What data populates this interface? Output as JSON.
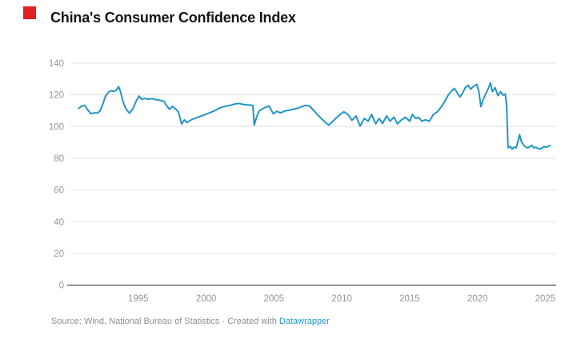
{
  "header": {
    "title": "China's Consumer Confidence Index"
  },
  "footer": {
    "source_text": "Source: Wind, National Bureau of Statistics · Created with ",
    "link_text": "Datawrapper"
  },
  "colors": {
    "line": "#2096c7",
    "link": "#1e97d5",
    "grid": "#e0e0e0",
    "baseline": "#1a1a1a",
    "axis_labels": "#969696",
    "title_text": "#151515",
    "source_text": "#8e8e8e",
    "logo_red": "#e0211f"
  },
  "chart_data": {
    "type": "line",
    "title": "China's Consumer Confidence Index",
    "xlabel": "",
    "ylabel": "",
    "xlim": [
      1990,
      2025.8
    ],
    "ylim": [
      0,
      140
    ],
    "x_ticks": [
      1995,
      2000,
      2005,
      2010,
      2015,
      2020,
      2025
    ],
    "y_ticks": [
      0,
      20,
      40,
      60,
      80,
      100,
      120,
      140
    ],
    "grid": "horizontal",
    "legend": "none",
    "series": [
      {
        "name": "Consumer Confidence Index",
        "points": [
          [
            1990.6,
            111.5
          ],
          [
            1990.8,
            112.8
          ],
          [
            1991.05,
            113.4
          ],
          [
            1991.3,
            110.2
          ],
          [
            1991.5,
            108.2
          ],
          [
            1991.75,
            108.6
          ],
          [
            1992.0,
            108.5
          ],
          [
            1992.2,
            110.0
          ],
          [
            1992.4,
            114.5
          ],
          [
            1992.6,
            119.5
          ],
          [
            1992.85,
            122.0
          ],
          [
            1993.0,
            122.5
          ],
          [
            1993.2,
            122.2
          ],
          [
            1993.4,
            123.0
          ],
          [
            1993.55,
            125.2
          ],
          [
            1993.7,
            121.8
          ],
          [
            1993.9,
            115.0
          ],
          [
            1994.1,
            111.0
          ],
          [
            1994.35,
            108.4
          ],
          [
            1994.6,
            111.2
          ],
          [
            1994.85,
            116.0
          ],
          [
            1995.05,
            119.2
          ],
          [
            1995.25,
            117.2
          ],
          [
            1995.5,
            117.7
          ],
          [
            1995.75,
            117.2
          ],
          [
            1996.0,
            117.6
          ],
          [
            1996.3,
            117.0
          ],
          [
            1996.6,
            116.5
          ],
          [
            1996.9,
            115.8
          ],
          [
            1997.1,
            113.0
          ],
          [
            1997.3,
            110.8
          ],
          [
            1997.5,
            112.8
          ],
          [
            1997.7,
            111.5
          ],
          [
            1997.95,
            109.3
          ],
          [
            1998.2,
            101.7
          ],
          [
            1998.4,
            104.2
          ],
          [
            1998.6,
            102.5
          ],
          [
            1998.85,
            104.0
          ],
          [
            1999.1,
            105.0
          ],
          [
            1999.4,
            105.9
          ],
          [
            1999.7,
            106.8
          ],
          [
            2000.0,
            107.8
          ],
          [
            2000.3,
            108.8
          ],
          [
            2000.7,
            110.2
          ],
          [
            2001.0,
            111.8
          ],
          [
            2001.4,
            112.8
          ],
          [
            2001.8,
            113.4
          ],
          [
            2002.1,
            114.2
          ],
          [
            2002.4,
            114.6
          ],
          [
            2002.7,
            114.0
          ],
          [
            2003.0,
            113.7
          ],
          [
            2003.3,
            113.5
          ],
          [
            2003.45,
            113.3
          ],
          [
            2003.55,
            100.9
          ],
          [
            2003.7,
            105.5
          ],
          [
            2003.9,
            109.8
          ],
          [
            2004.1,
            110.9
          ],
          [
            2004.4,
            112.3
          ],
          [
            2004.65,
            112.9
          ],
          [
            2004.95,
            108.0
          ],
          [
            2005.2,
            109.6
          ],
          [
            2005.5,
            108.6
          ],
          [
            2005.8,
            109.9
          ],
          [
            2006.1,
            110.2
          ],
          [
            2006.4,
            110.9
          ],
          [
            2006.7,
            111.4
          ],
          [
            2007.0,
            112.4
          ],
          [
            2007.3,
            113.3
          ],
          [
            2007.6,
            113.0
          ],
          [
            2007.9,
            110.5
          ],
          [
            2008.2,
            107.5
          ],
          [
            2008.5,
            105.0
          ],
          [
            2008.8,
            102.5
          ],
          [
            2009.05,
            100.9
          ],
          [
            2009.3,
            103.0
          ],
          [
            2009.6,
            105.5
          ],
          [
            2009.9,
            107.8
          ],
          [
            2010.15,
            109.3
          ],
          [
            2010.45,
            107.6
          ],
          [
            2010.75,
            103.9
          ],
          [
            2011.05,
            106.7
          ],
          [
            2011.35,
            100.3
          ],
          [
            2011.65,
            105.1
          ],
          [
            2011.95,
            103.4
          ],
          [
            2012.2,
            107.6
          ],
          [
            2012.5,
            101.7
          ],
          [
            2012.75,
            105.1
          ],
          [
            2013.0,
            101.9
          ],
          [
            2013.3,
            106.7
          ],
          [
            2013.55,
            103.4
          ],
          [
            2013.85,
            105.9
          ],
          [
            2014.1,
            101.7
          ],
          [
            2014.4,
            104.2
          ],
          [
            2014.7,
            105.9
          ],
          [
            2015.0,
            103.4
          ],
          [
            2015.2,
            107.6
          ],
          [
            2015.45,
            105.1
          ],
          [
            2015.65,
            105.9
          ],
          [
            2015.9,
            103.4
          ],
          [
            2016.15,
            104.2
          ],
          [
            2016.45,
            103.4
          ],
          [
            2016.75,
            107.6
          ],
          [
            2017.05,
            109.3
          ],
          [
            2017.35,
            112.6
          ],
          [
            2017.6,
            116.0
          ],
          [
            2017.85,
            120.0
          ],
          [
            2018.1,
            122.5
          ],
          [
            2018.3,
            124.0
          ],
          [
            2018.5,
            121.3
          ],
          [
            2018.7,
            118.6
          ],
          [
            2018.9,
            121.0
          ],
          [
            2019.1,
            124.5
          ],
          [
            2019.3,
            126.0
          ],
          [
            2019.5,
            123.5
          ],
          [
            2019.7,
            125.3
          ],
          [
            2019.95,
            126.6
          ],
          [
            2020.1,
            122.0
          ],
          [
            2020.25,
            112.6
          ],
          [
            2020.4,
            116.5
          ],
          [
            2020.6,
            120.5
          ],
          [
            2020.8,
            124.0
          ],
          [
            2020.95,
            127.5
          ],
          [
            2021.1,
            122.0
          ],
          [
            2021.3,
            124.5
          ],
          [
            2021.5,
            119.5
          ],
          [
            2021.7,
            121.9
          ],
          [
            2021.9,
            119.8
          ],
          [
            2022.05,
            120.5
          ],
          [
            2022.15,
            113.2
          ],
          [
            2022.25,
            86.7
          ],
          [
            2022.4,
            87.5
          ],
          [
            2022.55,
            85.8
          ],
          [
            2022.7,
            87.0
          ],
          [
            2022.85,
            86.6
          ],
          [
            2023.0,
            91.0
          ],
          [
            2023.1,
            94.9
          ],
          [
            2023.25,
            90.2
          ],
          [
            2023.4,
            88.3
          ],
          [
            2023.55,
            87.2
          ],
          [
            2023.7,
            86.5
          ],
          [
            2023.85,
            87.3
          ],
          [
            2024.0,
            88.2
          ],
          [
            2024.15,
            86.6
          ],
          [
            2024.3,
            87.0
          ],
          [
            2024.45,
            86.2
          ],
          [
            2024.6,
            85.8
          ],
          [
            2024.75,
            86.4
          ],
          [
            2024.9,
            87.4
          ],
          [
            2025.05,
            86.9
          ],
          [
            2025.2,
            87.5
          ],
          [
            2025.35,
            88.0
          ]
        ]
      }
    ]
  }
}
